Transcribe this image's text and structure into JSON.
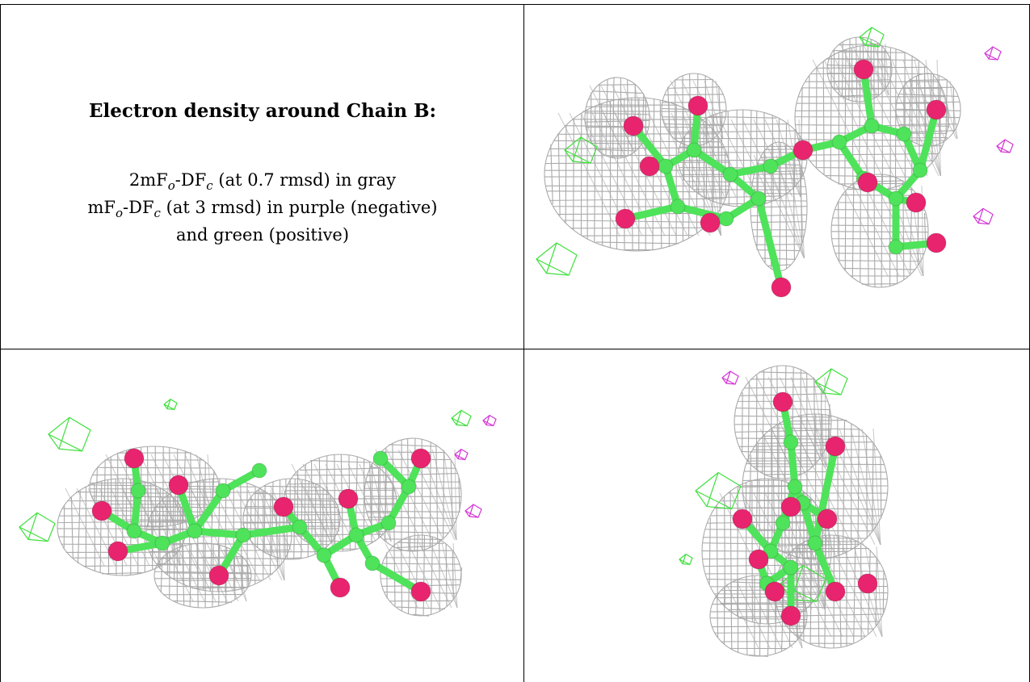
{
  "caption": {
    "title": "Electron density around Chain B:",
    "line1_pre": "2mF",
    "line1_sub1": "o",
    "line1_mid": "-DF",
    "line1_sub2": "c",
    "line1_post": " (at 0.7 rmsd) in gray",
    "line2_pre": "mF",
    "line2_sub1": "o",
    "line2_mid": "-DF",
    "line2_sub2": "c",
    "line2_post": " (at 3 rmsd) in purple (negative)",
    "line3": "and green (positive)"
  },
  "colors": {
    "mesh_gray": "#a6a6a6",
    "atom_oxygen": "#e8246e",
    "atom_carbon": "#4ee35a",
    "positive_density": "#3fe03c",
    "negative_density": "#d436d6",
    "grid_lines": "#000000"
  },
  "panels": [
    {
      "name": "density-view-top-right"
    },
    {
      "name": "density-view-bottom-left"
    },
    {
      "name": "density-view-bottom-right"
    }
  ]
}
